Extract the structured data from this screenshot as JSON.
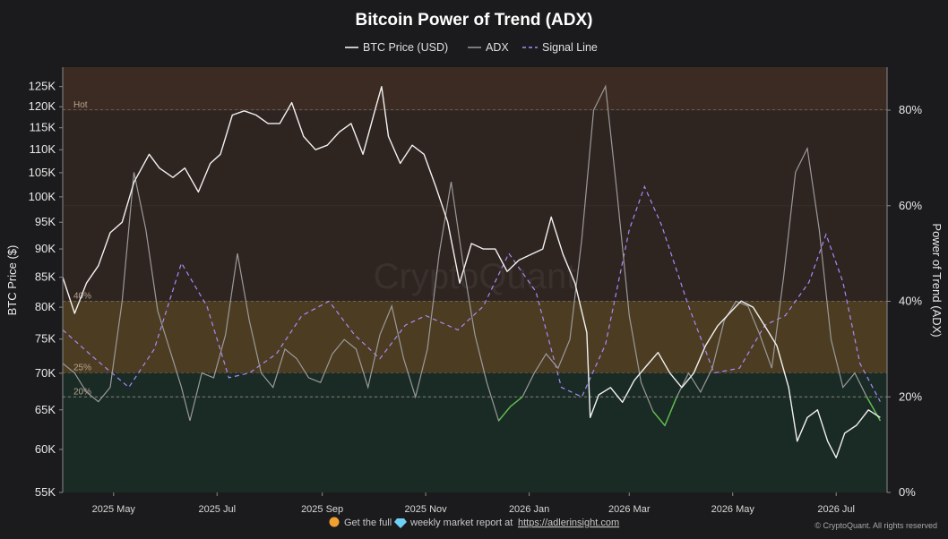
{
  "chart_data": {
    "type": "line",
    "title": "Bitcoin Power of Trend (ADX)",
    "legend": {
      "placement": "top-center",
      "entries": [
        {
          "label": "BTC Price (USD)",
          "color": "#ffffff",
          "style": "solid"
        },
        {
          "label": "ADX",
          "color": "#9a9a9a",
          "style": "solid"
        },
        {
          "label": "Signal Line",
          "color": "#a78bfa",
          "style": "dashed"
        }
      ]
    },
    "ylabel_left": "BTC Price ($)",
    "ylabel_right": "Power of Trend (ADX)",
    "y_left_scale": "log",
    "y_left_range": [
      55000,
      130000
    ],
    "y_left_ticks": [
      55000,
      60000,
      65000,
      70000,
      75000,
      80000,
      85000,
      90000,
      95000,
      100000,
      105000,
      110000,
      115000,
      120000,
      125000
    ],
    "y_left_tick_labels": [
      "55K",
      "60K",
      "65K",
      "70K",
      "75K",
      "80K",
      "85K",
      "90K",
      "95K",
      "100K",
      "105K",
      "110K",
      "115K",
      "120K",
      "125K"
    ],
    "y_right_range": [
      0,
      89
    ],
    "y_right_ticks": [
      0,
      20,
      40,
      60,
      80
    ],
    "y_right_tick_labels": [
      "0%",
      "20%",
      "40%",
      "60%",
      "80%"
    ],
    "x_range": [
      "2025-04-01",
      "2026-07-31"
    ],
    "x_ticks": [
      "2025-05-01",
      "2025-07-01",
      "2025-09-01",
      "2025-11-01",
      "2026-01-01",
      "2026-03-01",
      "2026-05-01",
      "2026-07-01"
    ],
    "x_tick_labels": [
      "2025 May",
      "2025 Jul",
      "2025 Sep",
      "2025 Nov",
      "2026 Jan",
      "2026 Mar",
      "2026 May",
      "2026 Jul"
    ],
    "zones": [
      {
        "label": "Hot",
        "level": 80,
        "color": "#3c2b22"
      },
      {
        "label": "40%",
        "level": 40,
        "color": "#2e2420"
      },
      {
        "label": "25%",
        "level": 25,
        "color": "#4c3c22"
      },
      {
        "label": "20%",
        "level": 20,
        "color": "#1a2a25"
      }
    ],
    "grid": true,
    "series": [
      {
        "name": "BTC Price (USD)",
        "color": "#f2f2f2",
        "axis": "left",
        "points": [
          [
            "2025-04-01",
            85000
          ],
          [
            "2025-04-08",
            79000
          ],
          [
            "2025-04-15",
            84000
          ],
          [
            "2025-04-22",
            87000
          ],
          [
            "2025-04-29",
            93000
          ],
          [
            "2025-05-06",
            95000
          ],
          [
            "2025-05-13",
            103000
          ],
          [
            "2025-05-22",
            109000
          ],
          [
            "2025-05-28",
            106000
          ],
          [
            "2025-06-05",
            104000
          ],
          [
            "2025-06-12",
            106000
          ],
          [
            "2025-06-20",
            101000
          ],
          [
            "2025-06-27",
            107000
          ],
          [
            "2025-07-03",
            109000
          ],
          [
            "2025-07-10",
            118000
          ],
          [
            "2025-07-17",
            119000
          ],
          [
            "2025-07-24",
            118000
          ],
          [
            "2025-07-31",
            116000
          ],
          [
            "2025-08-07",
            116000
          ],
          [
            "2025-08-14",
            121000
          ],
          [
            "2025-08-21",
            113000
          ],
          [
            "2025-08-28",
            110000
          ],
          [
            "2025-09-04",
            111000
          ],
          [
            "2025-09-11",
            114000
          ],
          [
            "2025-09-18",
            116000
          ],
          [
            "2025-09-25",
            109000
          ],
          [
            "2025-10-02",
            119000
          ],
          [
            "2025-10-06",
            125000
          ],
          [
            "2025-10-10",
            113000
          ],
          [
            "2025-10-17",
            107000
          ],
          [
            "2025-10-24",
            111000
          ],
          [
            "2025-10-31",
            109000
          ],
          [
            "2025-11-07",
            102000
          ],
          [
            "2025-11-14",
            95000
          ],
          [
            "2025-11-21",
            84000
          ],
          [
            "2025-11-28",
            91000
          ],
          [
            "2025-12-05",
            90000
          ],
          [
            "2025-12-12",
            90000
          ],
          [
            "2025-12-19",
            86000
          ],
          [
            "2025-12-26",
            88000
          ],
          [
            "2026-01-02",
            89000
          ],
          [
            "2026-01-09",
            90000
          ],
          [
            "2026-01-14",
            96000
          ],
          [
            "2026-01-21",
            89000
          ],
          [
            "2026-01-28",
            84000
          ],
          [
            "2026-02-04",
            76000
          ],
          [
            "2026-02-06",
            64000
          ],
          [
            "2026-02-11",
            67000
          ],
          [
            "2026-02-18",
            68000
          ],
          [
            "2026-02-25",
            66000
          ],
          [
            "2026-03-04",
            69000
          ],
          [
            "2026-03-11",
            71000
          ],
          [
            "2026-03-18",
            73000
          ],
          [
            "2026-03-25",
            70000
          ],
          [
            "2026-04-01",
            68000
          ],
          [
            "2026-04-08",
            70000
          ],
          [
            "2026-04-15",
            74000
          ],
          [
            "2026-04-22",
            77000
          ],
          [
            "2026-04-29",
            79000
          ],
          [
            "2026-05-06",
            81000
          ],
          [
            "2026-05-13",
            80000
          ],
          [
            "2026-05-20",
            77000
          ],
          [
            "2026-05-27",
            74000
          ],
          [
            "2026-06-03",
            68000
          ],
          [
            "2026-06-08",
            61000
          ],
          [
            "2026-06-14",
            64000
          ],
          [
            "2026-06-20",
            65000
          ],
          [
            "2026-06-26",
            61000
          ],
          [
            "2026-07-01",
            59000
          ],
          [
            "2026-07-06",
            62000
          ],
          [
            "2026-07-13",
            63000
          ],
          [
            "2026-07-20",
            65000
          ],
          [
            "2026-07-27",
            64000
          ]
        ]
      },
      {
        "name": "ADX",
        "color": "#9a9a9a",
        "color_below_20": "#5fbf4a",
        "axis": "right",
        "points": [
          [
            "2025-04-01",
            27
          ],
          [
            "2025-04-08",
            25
          ],
          [
            "2025-04-15",
            21
          ],
          [
            "2025-04-22",
            19
          ],
          [
            "2025-04-29",
            22
          ],
          [
            "2025-05-06",
            40
          ],
          [
            "2025-05-13",
            67
          ],
          [
            "2025-05-20",
            55
          ],
          [
            "2025-05-27",
            38
          ],
          [
            "2025-06-03",
            30
          ],
          [
            "2025-06-10",
            22
          ],
          [
            "2025-06-15",
            15
          ],
          [
            "2025-06-22",
            25
          ],
          [
            "2025-06-29",
            24
          ],
          [
            "2025-07-06",
            33
          ],
          [
            "2025-07-13",
            50
          ],
          [
            "2025-07-20",
            36
          ],
          [
            "2025-07-27",
            25
          ],
          [
            "2025-08-03",
            22
          ],
          [
            "2025-08-10",
            30
          ],
          [
            "2025-08-17",
            28
          ],
          [
            "2025-08-24",
            24
          ],
          [
            "2025-08-31",
            23
          ],
          [
            "2025-09-07",
            29
          ],
          [
            "2025-09-14",
            32
          ],
          [
            "2025-09-21",
            30
          ],
          [
            "2025-09-28",
            22
          ],
          [
            "2025-10-05",
            33
          ],
          [
            "2025-10-12",
            39
          ],
          [
            "2025-10-19",
            28
          ],
          [
            "2025-10-26",
            20
          ],
          [
            "2025-11-02",
            30
          ],
          [
            "2025-11-09",
            50
          ],
          [
            "2025-11-16",
            65
          ],
          [
            "2025-11-23",
            48
          ],
          [
            "2025-11-30",
            33
          ],
          [
            "2025-12-07",
            23
          ],
          [
            "2025-12-14",
            15
          ],
          [
            "2025-12-21",
            18
          ],
          [
            "2025-12-28",
            20
          ],
          [
            "2026-01-04",
            25
          ],
          [
            "2026-01-11",
            29
          ],
          [
            "2026-01-18",
            26
          ],
          [
            "2026-01-25",
            32
          ],
          [
            "2026-02-01",
            53
          ],
          [
            "2026-02-08",
            80
          ],
          [
            "2026-02-15",
            85
          ],
          [
            "2026-02-22",
            62
          ],
          [
            "2026-03-01",
            37
          ],
          [
            "2026-03-08",
            23
          ],
          [
            "2026-03-15",
            17
          ],
          [
            "2026-03-22",
            14
          ],
          [
            "2026-03-29",
            20
          ],
          [
            "2026-04-05",
            25
          ],
          [
            "2026-04-12",
            21
          ],
          [
            "2026-04-19",
            26
          ],
          [
            "2026-04-26",
            36
          ],
          [
            "2026-05-03",
            40
          ],
          [
            "2026-05-10",
            39
          ],
          [
            "2026-05-17",
            33
          ],
          [
            "2026-05-24",
            26
          ],
          [
            "2026-05-31",
            45
          ],
          [
            "2026-06-07",
            67
          ],
          [
            "2026-06-14",
            72
          ],
          [
            "2026-06-21",
            55
          ],
          [
            "2026-06-28",
            32
          ],
          [
            "2026-07-05",
            22
          ],
          [
            "2026-07-12",
            25
          ],
          [
            "2026-07-19",
            20
          ],
          [
            "2026-07-27",
            15
          ]
        ]
      },
      {
        "name": "Signal Line",
        "color": "#a78bfa",
        "style": "dashed",
        "axis": "right",
        "points": [
          [
            "2025-04-01",
            34
          ],
          [
            "2025-04-20",
            28
          ],
          [
            "2025-05-10",
            22
          ],
          [
            "2025-05-25",
            30
          ],
          [
            "2025-06-10",
            48
          ],
          [
            "2025-06-25",
            39
          ],
          [
            "2025-07-08",
            24
          ],
          [
            "2025-07-20",
            25
          ],
          [
            "2025-08-05",
            29
          ],
          [
            "2025-08-20",
            37
          ],
          [
            "2025-09-05",
            40
          ],
          [
            "2025-09-20",
            33
          ],
          [
            "2025-10-05",
            28
          ],
          [
            "2025-10-20",
            35
          ],
          [
            "2025-11-01",
            37
          ],
          [
            "2025-11-20",
            34
          ],
          [
            "2025-12-05",
            39
          ],
          [
            "2025-12-20",
            50
          ],
          [
            "2026-01-05",
            42
          ],
          [
            "2026-01-20",
            22
          ],
          [
            "2026-02-01",
            20
          ],
          [
            "2026-02-15",
            31
          ],
          [
            "2026-03-01",
            55
          ],
          [
            "2026-03-10",
            64
          ],
          [
            "2026-03-20",
            56
          ],
          [
            "2026-04-05",
            39
          ],
          [
            "2026-04-20",
            25
          ],
          [
            "2026-05-05",
            26
          ],
          [
            "2026-05-20",
            35
          ],
          [
            "2026-06-01",
            37
          ],
          [
            "2026-06-15",
            44
          ],
          [
            "2026-06-25",
            54
          ],
          [
            "2026-07-05",
            44
          ],
          [
            "2026-07-15",
            27
          ],
          [
            "2026-07-27",
            19
          ]
        ]
      }
    ]
  },
  "watermark": "CryptoQuant",
  "footer": {
    "text_before_icon": "Get the full",
    "text_after_icon": "weekly market report at",
    "link": "https://adlerinsight.com",
    "copyright": "© CryptoQuant. All rights reserved"
  }
}
